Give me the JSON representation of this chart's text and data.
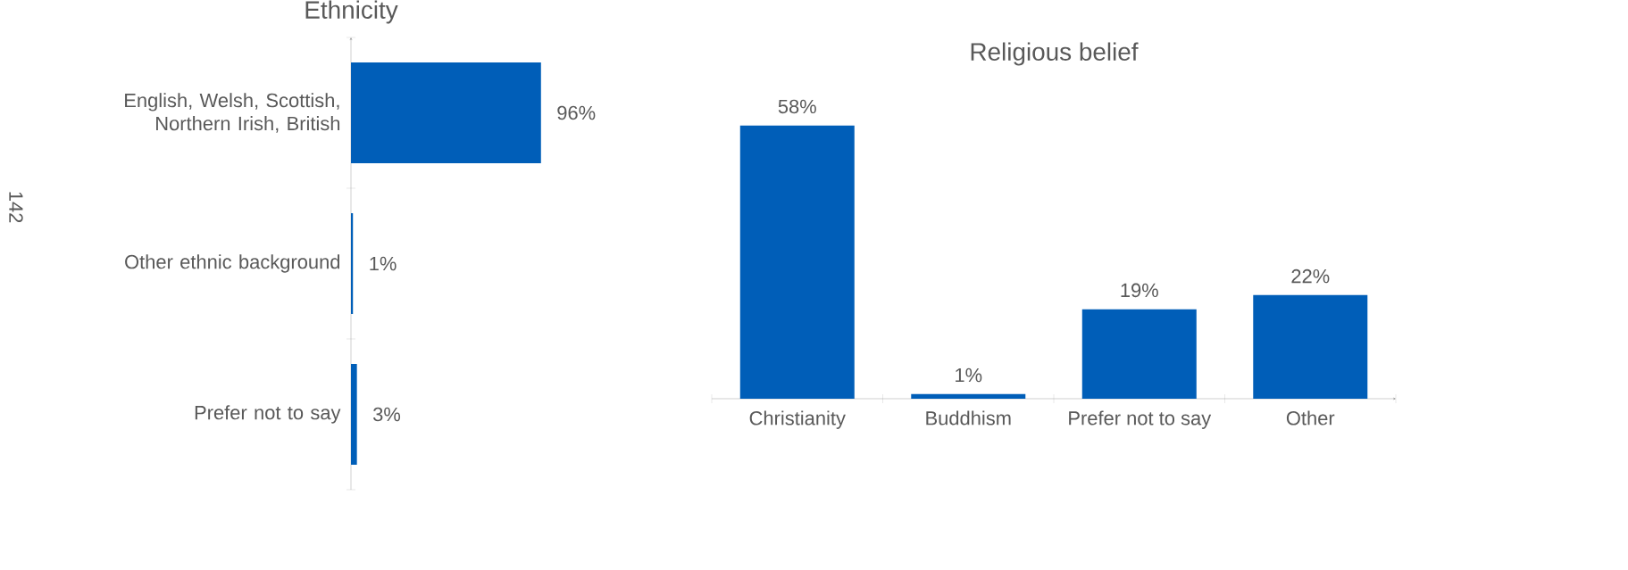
{
  "chart_data": [
    {
      "type": "bar",
      "orientation": "horizontal",
      "title": "Ethnicity",
      "categories": [
        "English, Welsh, Scottish, Northern Irish, British",
        "Other ethnic background",
        "Prefer not to say"
      ],
      "values": [
        96,
        1,
        3
      ],
      "value_labels": [
        "96%",
        "1%",
        "3%"
      ],
      "color": "#005eb8",
      "annotations": [
        "142"
      ]
    },
    {
      "type": "bar",
      "title": "Religious belief",
      "categories": [
        "Christianity",
        "Buddhism",
        "Prefer not to say",
        "Other"
      ],
      "values": [
        58,
        1,
        19,
        22
      ],
      "value_labels": [
        "58%",
        "1%",
        "19%",
        "22%"
      ],
      "color": "#005eb8"
    }
  ]
}
